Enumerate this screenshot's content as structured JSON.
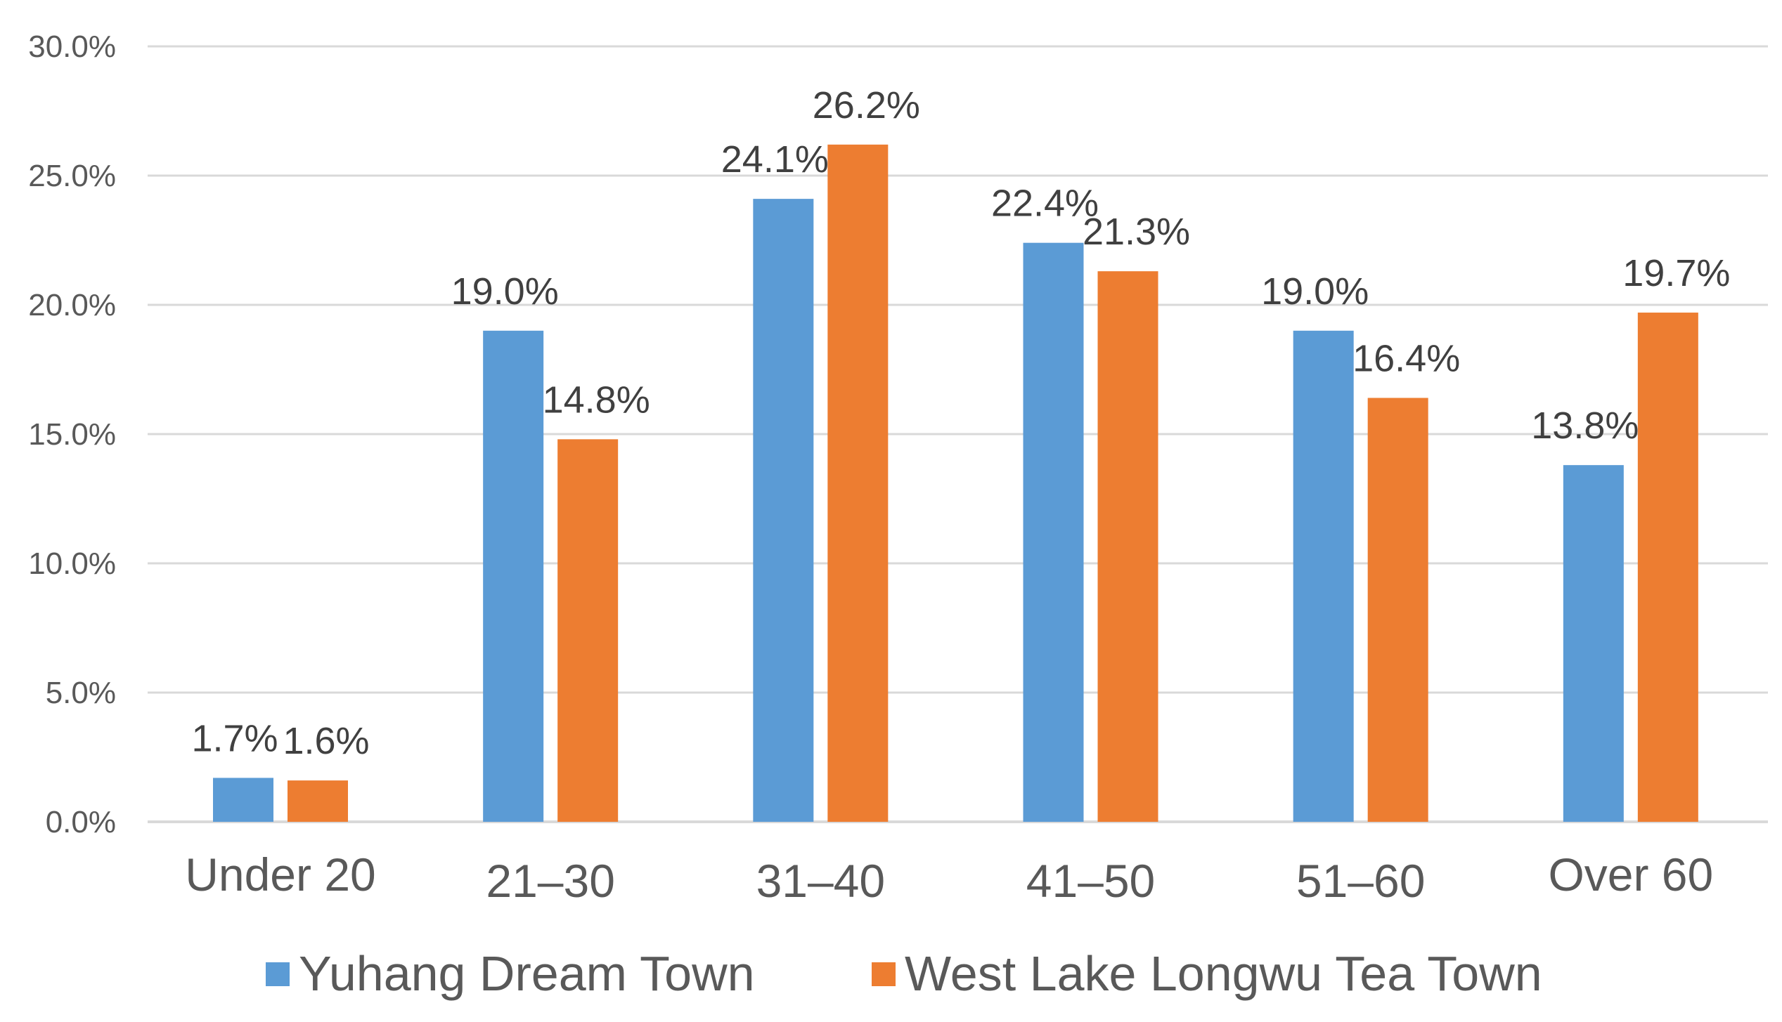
{
  "chart_data": {
    "type": "bar",
    "categories": [
      "Under 20",
      "21–30",
      "31–40",
      "41–50",
      "51–60",
      "Over 60"
    ],
    "series": [
      {
        "name": "Yuhang Dream Town",
        "color": "#5B9BD5",
        "values": [
          1.7,
          19.0,
          24.1,
          22.4,
          19.0,
          13.8
        ],
        "labels": [
          "1.7%",
          "19.0%",
          "24.1%",
          "22.4%",
          "19.0%",
          "13.8%"
        ]
      },
      {
        "name": "West Lake Longwu Tea Town",
        "color": "#ED7D31",
        "values": [
          1.6,
          14.8,
          26.2,
          21.3,
          16.4,
          19.7
        ],
        "labels": [
          "1.6%",
          "14.8%",
          "26.2%",
          "21.3%",
          "16.4%",
          "19.7%"
        ]
      }
    ],
    "y_ticks": [
      "0.0%",
      "5.0%",
      "10.0%",
      "15.0%",
      "20.0%",
      "25.0%",
      "30.0%"
    ],
    "ylim": [
      0,
      30
    ],
    "grid": true,
    "legend_position": "bottom",
    "gridline_color": "#D9D9D9",
    "axis_color": "#D9D9D9"
  }
}
